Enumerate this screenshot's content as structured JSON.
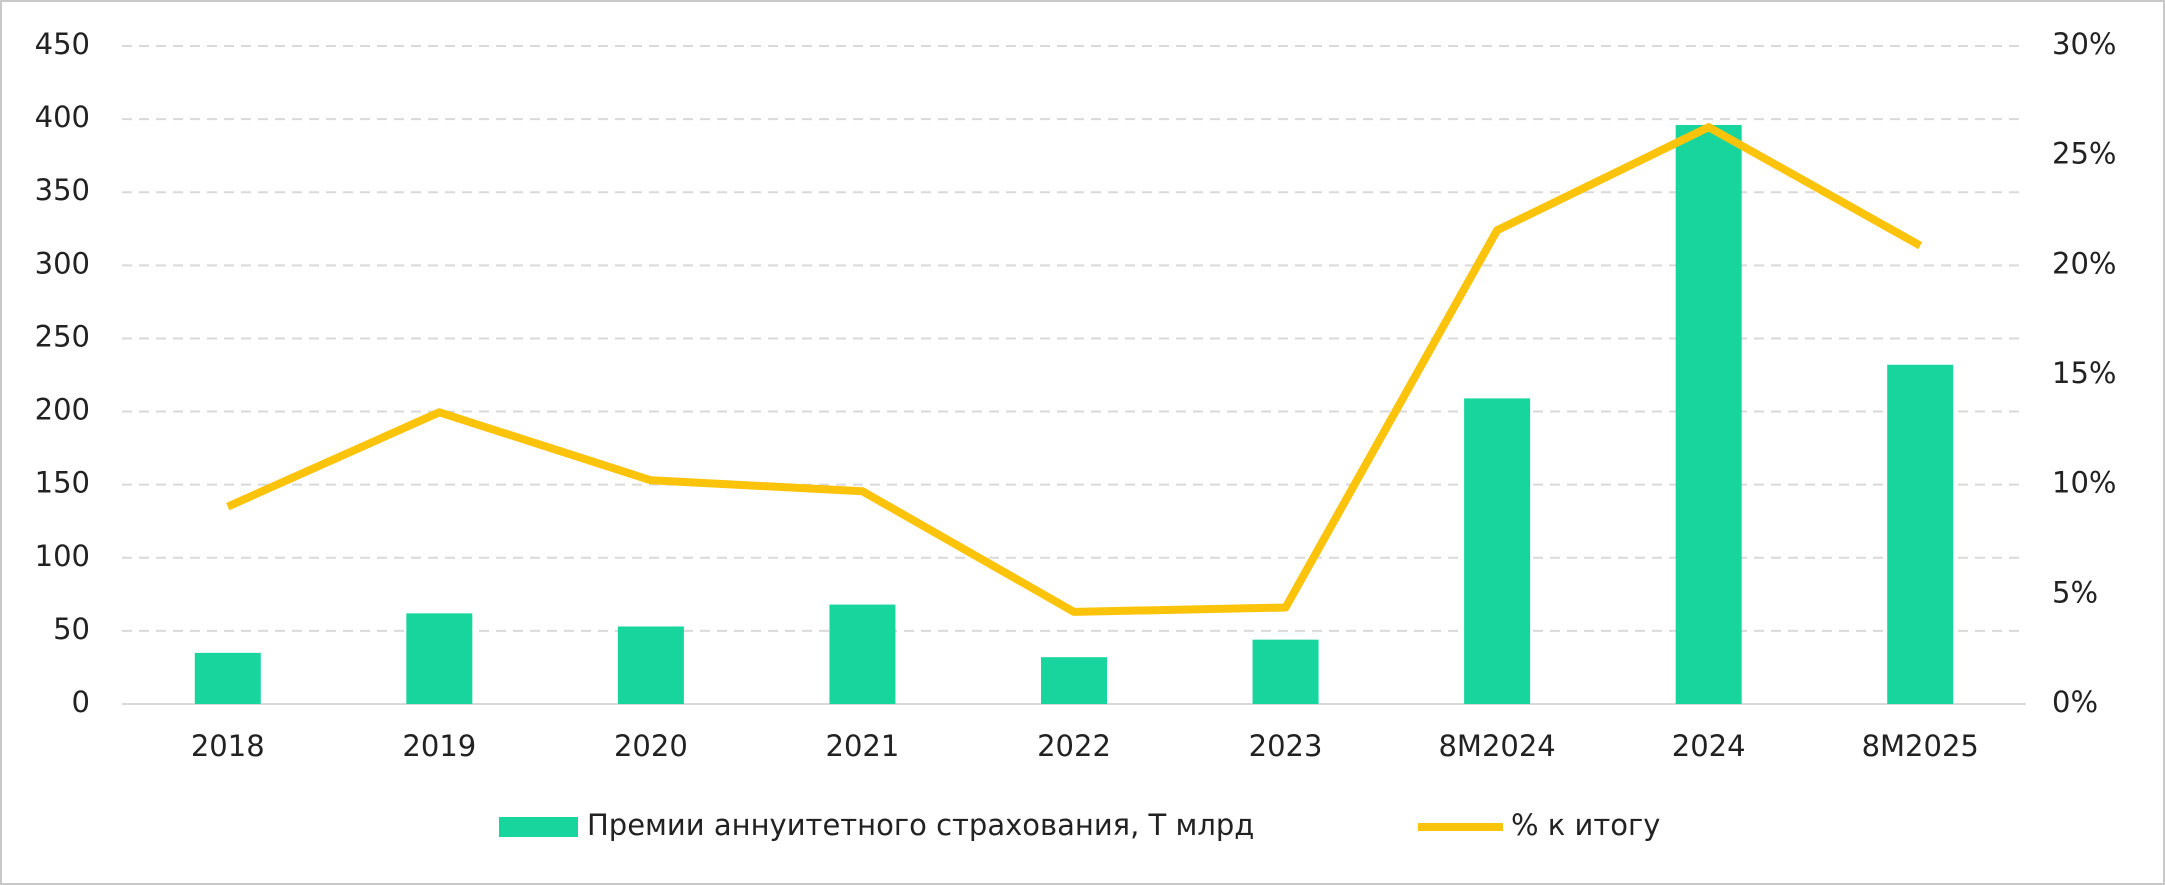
{
  "chart_data": {
    "type": "bar-line",
    "categories": [
      "2018",
      "2019",
      "2020",
      "2021",
      "2022",
      "2023",
      "8M2024",
      "2024",
      "8M2025"
    ],
    "series": [
      {
        "name": "Премии аннуитетного страхования, Т млрд",
        "type": "bar",
        "color": "#17d59c",
        "values": [
          35,
          62,
          53,
          68,
          32,
          44,
          209,
          396,
          232
        ]
      },
      {
        "name": "% к итогу",
        "type": "line",
        "color": "#fcc30b",
        "axis": "y2",
        "values": [
          9.0,
          13.3,
          10.2,
          9.7,
          4.2,
          4.4,
          21.6,
          26.3,
          20.9
        ]
      }
    ],
    "ylim": [
      0,
      450
    ],
    "yticks": [
      0,
      50,
      100,
      150,
      200,
      250,
      300,
      350,
      400,
      450
    ],
    "y2lim": [
      0,
      30
    ],
    "y2ticks": [
      {
        "value": 0,
        "label": "0%"
      },
      {
        "value": 5,
        "label": "5%"
      },
      {
        "value": 10,
        "label": "10%"
      },
      {
        "value": 15,
        "label": "15%"
      },
      {
        "value": 20,
        "label": "20%"
      },
      {
        "value": 25,
        "label": "25%"
      },
      {
        "value": 30,
        "label": "30%"
      }
    ],
    "grid": true,
    "legend": "bottom"
  }
}
